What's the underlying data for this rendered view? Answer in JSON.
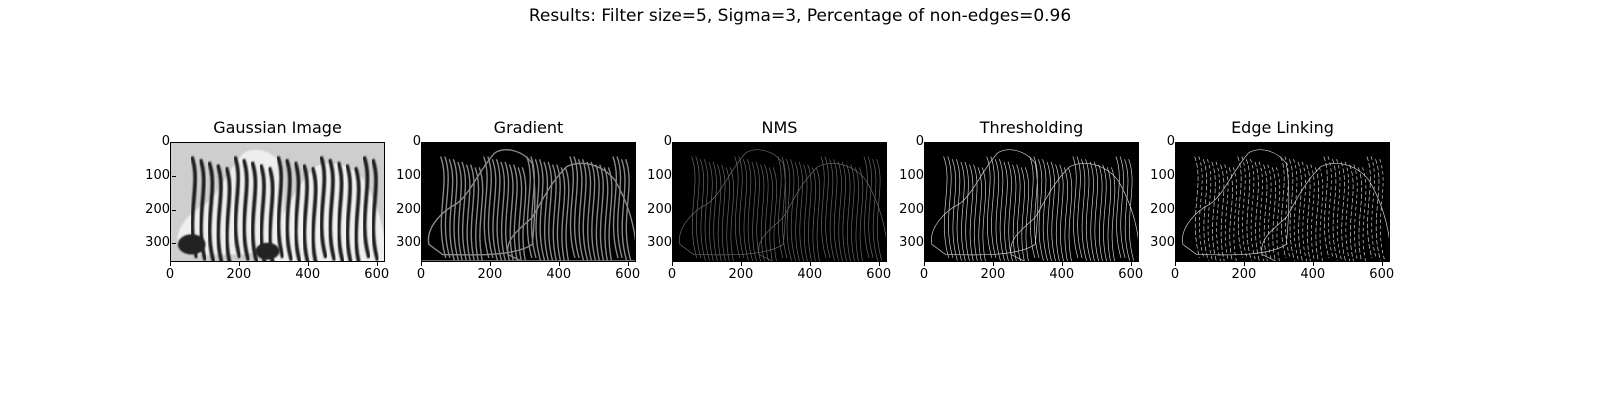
{
  "figure": {
    "title": "Results: Filter size=5, Sigma=3, Percentage of non-edges=0.96",
    "x_ticks": [
      "0",
      "200",
      "400",
      "600"
    ],
    "y_ticks": [
      "0",
      "100",
      "200",
      "300"
    ],
    "image_extent": {
      "width": 624,
      "height": 355
    }
  },
  "panels": [
    {
      "title": "Gaussian Image",
      "content": "gaussian"
    },
    {
      "title": "Gradient",
      "content": "gradient"
    },
    {
      "title": "NMS",
      "content": "nms"
    },
    {
      "title": "Thresholding",
      "content": "threshold"
    },
    {
      "title": "Edge Linking",
      "content": "linking"
    }
  ]
}
